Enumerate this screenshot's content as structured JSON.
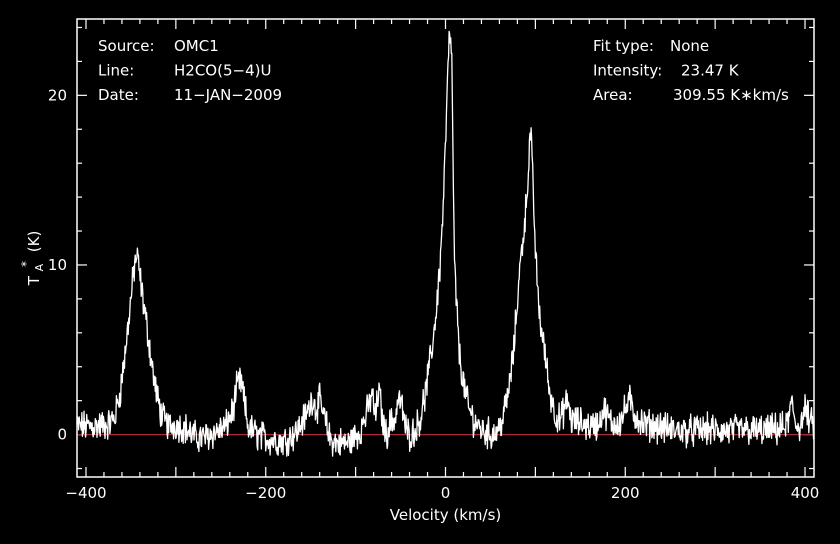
{
  "chart_data": {
    "type": "line",
    "title": "",
    "xlabel": "Velocity (km/s)",
    "ylabel": "T",
    "ylabel_sub": "A",
    "ylabel_sup": "*",
    "ylabel_unit": "(K)",
    "xlim": [
      -410,
      410
    ],
    "ylim": [
      -2.5,
      24.5
    ],
    "xticks": [
      -400,
      -200,
      0,
      200,
      400
    ],
    "yticks": [
      0,
      10,
      20
    ],
    "grid": false,
    "baseline": 0,
    "colors": {
      "background": "#000000",
      "axes": "#ffffff",
      "spectrum": "#ffffff",
      "baseline": "#e0141e"
    },
    "info_left": [
      {
        "key": "Source:",
        "value": "OMC1"
      },
      {
        "key": "Line:",
        "value": "H2CO(5−4)U"
      },
      {
        "key": "Date:",
        "value": "11−JAN−2009"
      }
    ],
    "info_right": [
      {
        "key": "Fit type:",
        "value": "None"
      },
      {
        "key": "Intensity:",
        "value": "23.47 K"
      },
      {
        "key": "Area:",
        "value": "309.55 K∗km/s"
      }
    ],
    "series": [
      {
        "x": [
          -408,
          -390,
          -375,
          -368,
          -362,
          -356,
          -350,
          -346,
          -344,
          -342,
          -338,
          -334,
          -330,
          -325,
          -320,
          -315,
          -308,
          -300,
          -290,
          -280,
          -270,
          -258,
          -245,
          -236,
          -232,
          -228,
          -224,
          -220,
          -210,
          -195,
          -180,
          -165,
          -152,
          -148,
          -144,
          -140,
          -136,
          -132,
          -128,
          -120,
          -108,
          -95,
          -86,
          -82,
          -78,
          -74,
          -70,
          -66,
          -62,
          -56,
          -52,
          -48,
          -44,
          -40,
          -34,
          -28,
          -22,
          -18,
          -14,
          -10,
          -6,
          -3,
          0,
          2,
          4,
          6,
          7,
          8,
          9,
          10,
          12,
          14,
          16,
          20,
          26,
          32,
          40,
          50,
          58,
          64,
          70,
          76,
          80,
          84,
          88,
          91,
          93,
          95,
          97,
          100,
          103,
          106,
          110,
          116,
          122,
          128,
          132,
          136,
          140,
          150,
          160,
          170,
          176,
          185,
          195,
          200,
          205,
          210,
          220,
          235,
          250,
          270,
          290,
          310,
          330,
          350,
          370,
          380,
          385,
          390,
          395,
          400,
          408
        ],
        "y": [
          0.5,
          0.5,
          0.6,
          1.0,
          2.5,
          5.0,
          8.0,
          10.0,
          10.5,
          10.2,
          8.5,
          7.0,
          5.5,
          3.5,
          2.0,
          1.0,
          0.5,
          0.6,
          0.4,
          -0.1,
          -0.2,
          0.1,
          0.4,
          1.5,
          2.8,
          3.2,
          2.0,
          0.5,
          0.0,
          -0.3,
          -0.4,
          0.2,
          1.5,
          2.2,
          1.5,
          2.0,
          1.2,
          0.4,
          -0.3,
          -0.5,
          -0.5,
          0.2,
          1.5,
          2.5,
          1.0,
          2.7,
          0.8,
          0.0,
          0.6,
          1.0,
          2.2,
          1.5,
          0.3,
          0.0,
          0.2,
          1.0,
          2.5,
          4.0,
          5.5,
          7.5,
          10.0,
          13.0,
          17.0,
          20.5,
          23.0,
          23.47,
          22.0,
          18.0,
          13.5,
          10.0,
          8.0,
          6.0,
          4.5,
          3.0,
          1.5,
          0.8,
          0.3,
          0.0,
          0.2,
          1.0,
          2.5,
          5.0,
          8.0,
          10.5,
          12.5,
          14.5,
          16.5,
          18.0,
          15.0,
          11.0,
          8.0,
          6.5,
          5.0,
          2.5,
          1.2,
          0.8,
          1.5,
          2.0,
          0.8,
          0.7,
          0.5,
          0.6,
          1.5,
          0.6,
          0.8,
          1.5,
          2.0,
          1.2,
          0.6,
          0.5,
          0.3,
          0.2,
          0.3,
          0.2,
          0.3,
          0.2,
          0.3,
          0.5,
          1.8,
          0.6,
          0.5,
          1.5,
          0.5
        ]
      }
    ]
  }
}
